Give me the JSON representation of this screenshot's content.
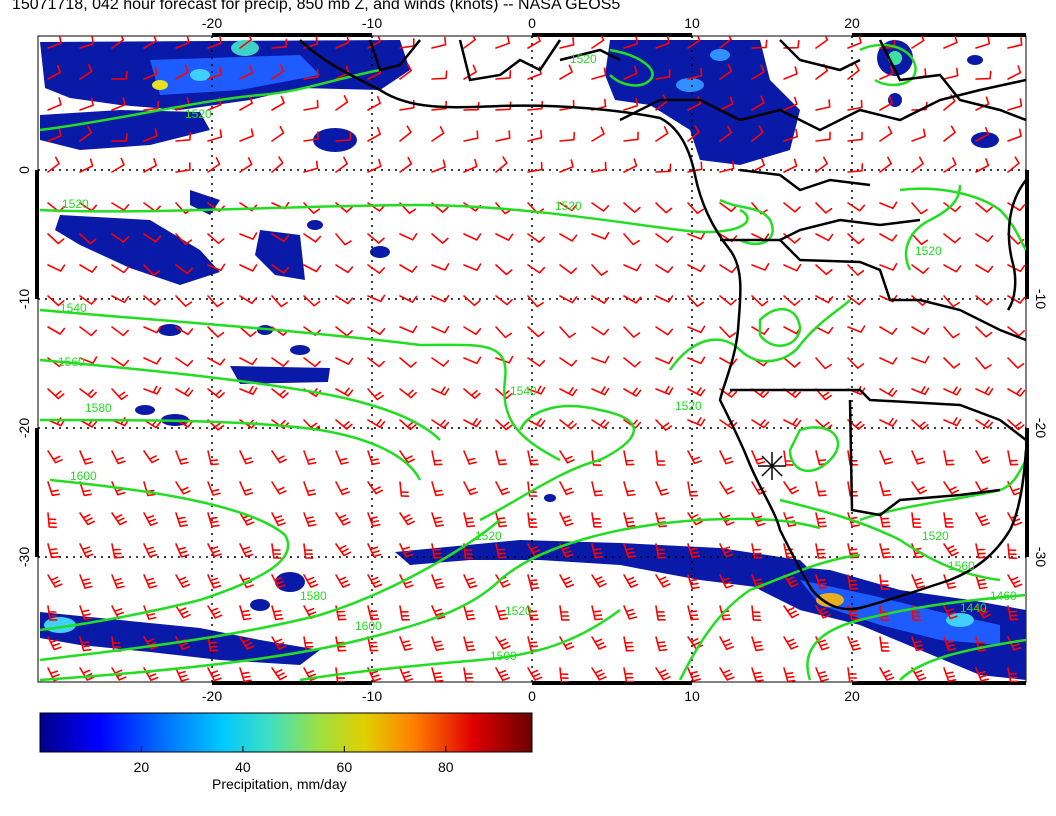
{
  "title": "15071718, 042 hour forecast for precip, 850 mb Z, and winds (knots) -- NASA GEOS5",
  "map": {
    "lon_range": [
      -31,
      30
    ],
    "lat_range": [
      -40,
      10
    ],
    "top_lon_ticks": [
      "-20",
      "-10",
      "0",
      "10",
      "20"
    ],
    "bottom_lon_ticks": [
      "-20",
      "-10",
      "0",
      "10",
      "20"
    ],
    "left_lat_ticks": [
      "0",
      "-10",
      "-20",
      "-30"
    ],
    "right_lat_ticks": [
      "-10",
      "-20",
      "-30"
    ],
    "contour_color": "#22dd22",
    "wind_barb_color": "#ff0000",
    "coast_color": "#000000",
    "contour_labels": [
      "1520",
      "1520",
      "1520",
      "1520",
      "1540",
      "1560",
      "1580",
      "1600",
      "1540",
      "1520",
      "1520",
      "1580",
      "1600",
      "1520",
      "1500",
      "1520",
      "1560",
      "1460",
      "1440",
      "1520"
    ],
    "marker": "site-marker"
  },
  "colorbar": {
    "label": "Precipitation, mm/day",
    "ticks": [
      "20",
      "40",
      "60",
      "80"
    ],
    "tick_values": [
      20,
      40,
      60,
      80
    ],
    "range": [
      0,
      97
    ],
    "colors": [
      "#00008b",
      "#0000ff",
      "#0070ff",
      "#00c8ff",
      "#40e0c0",
      "#a0e040",
      "#e0d000",
      "#ff8000",
      "#e00000",
      "#6a0000"
    ]
  }
}
